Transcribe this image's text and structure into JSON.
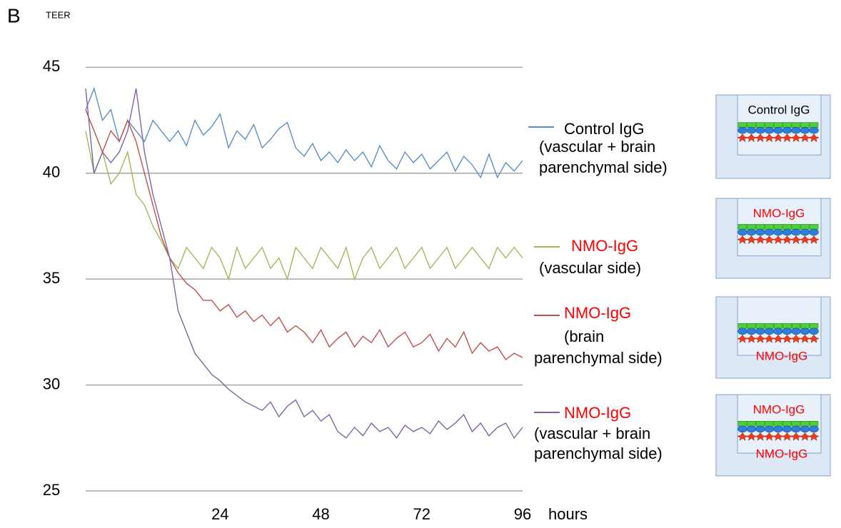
{
  "chart_data": {
    "type": "line",
    "panel_label": "B",
    "y_label": "TEER",
    "x_label": "hours",
    "xlim": [
      -8,
      96
    ],
    "xticks": [
      24,
      48,
      72,
      96
    ],
    "ylim": [
      25,
      47
    ],
    "yticks": [
      25,
      30,
      35,
      40,
      45
    ],
    "grid": true,
    "x": [
      -8,
      -6,
      -4,
      -2,
      0,
      2,
      4,
      6,
      8,
      10,
      12,
      14,
      16,
      18,
      20,
      22,
      24,
      26,
      28,
      30,
      32,
      34,
      36,
      38,
      40,
      42,
      44,
      46,
      48,
      50,
      52,
      54,
      56,
      58,
      60,
      62,
      64,
      66,
      68,
      70,
      72,
      74,
      76,
      78,
      80,
      82,
      84,
      86,
      88,
      90,
      92,
      94,
      96
    ],
    "series": [
      {
        "name": "Control IgG",
        "name_color": "#000000",
        "description": [
          "(vascular + brain",
          "parenchymal side)"
        ],
        "color": "#5b8ec7",
        "values": [
          43,
          44,
          42.5,
          43,
          41.5,
          42.5,
          42,
          41.5,
          42.5,
          42,
          41.5,
          42,
          41.3,
          42.5,
          41.8,
          42.2,
          42.8,
          41.2,
          42,
          41.6,
          42.3,
          41.2,
          41.6,
          42.1,
          42.4,
          41.2,
          40.8,
          41.4,
          40.6,
          41,
          40.5,
          41.1,
          40.6,
          41,
          40.3,
          41.3,
          40.6,
          40.2,
          41,
          40.5,
          40.9,
          40.2,
          40.6,
          41,
          40.1,
          40.8,
          40.4,
          39.8,
          40.9,
          39.8,
          40.5,
          40.1,
          40.6
        ]
      },
      {
        "name": "NMO-IgG",
        "name_color": "#ff0000",
        "description": [
          "(vascular side)"
        ],
        "color": "#9bbb59",
        "values": [
          42,
          40,
          41,
          39.5,
          40,
          41,
          39,
          38.5,
          37.5,
          36.8,
          36,
          35.5,
          36.5,
          36,
          35.5,
          36.5,
          36,
          35,
          36.5,
          35.5,
          36,
          36.5,
          35.5,
          36,
          35,
          36.5,
          36,
          35.5,
          36.5,
          36,
          35.5,
          36.5,
          35,
          36,
          36.5,
          35.5,
          36,
          36.5,
          35.5,
          36,
          36.5,
          35.5,
          36,
          36.5,
          35.5,
          36,
          36.5,
          36,
          35.5,
          36.5,
          36,
          36.5,
          36
        ]
      },
      {
        "name": "NMO-IgG",
        "name_color": "#ff0000",
        "description": [
          "(brain",
          "parenchymal side)"
        ],
        "color": "#c0504d",
        "values": [
          43,
          42,
          41,
          42,
          41.5,
          42.5,
          41.5,
          40,
          38.5,
          37,
          36,
          35.3,
          34.8,
          34.5,
          34,
          34,
          33.5,
          33.8,
          33.2,
          33.5,
          33,
          33.3,
          32.8,
          33.2,
          32.5,
          32.8,
          32.5,
          32,
          32.6,
          31.8,
          32.2,
          32.5,
          31.8,
          32.3,
          32,
          32.6,
          31.8,
          32.2,
          32.5,
          31.8,
          32,
          32.4,
          31.6,
          32.2,
          31.8,
          32.5,
          31.5,
          32,
          31.6,
          31.8,
          31.2,
          31.5,
          31.3
        ]
      },
      {
        "name": "NMO-IgG",
        "name_color": "#ff0000",
        "description": [
          "(vascular + brain",
          "parenchymal side)"
        ],
        "color": "#8064a2",
        "values": [
          44,
          40,
          41,
          40.5,
          41,
          42,
          44,
          41,
          39,
          37.5,
          36,
          33.5,
          32.5,
          31.5,
          31,
          30.5,
          30.2,
          29.8,
          29.5,
          29.2,
          29,
          28.8,
          29.2,
          28.5,
          29,
          29.3,
          28.5,
          28.8,
          28.3,
          28.6,
          27.8,
          27.5,
          28,
          27.6,
          28.2,
          27.8,
          28,
          27.5,
          28.1,
          27.8,
          28,
          27.7,
          28.3,
          27.9,
          28.2,
          28.6,
          27.8,
          28.2,
          27.6,
          28,
          28.2,
          27.5,
          28
        ]
      }
    ]
  },
  "diagrams": [
    {
      "top": "Control IgG",
      "color": "#000000"
    },
    {
      "top": "NMO-IgG",
      "color": "#ff0000"
    },
    {
      "bottom": "NMO-IgG",
      "color": "#ff0000"
    },
    {
      "top": "NMO-IgG",
      "bottom": "NMO-IgG",
      "color": "#ff0000"
    }
  ]
}
